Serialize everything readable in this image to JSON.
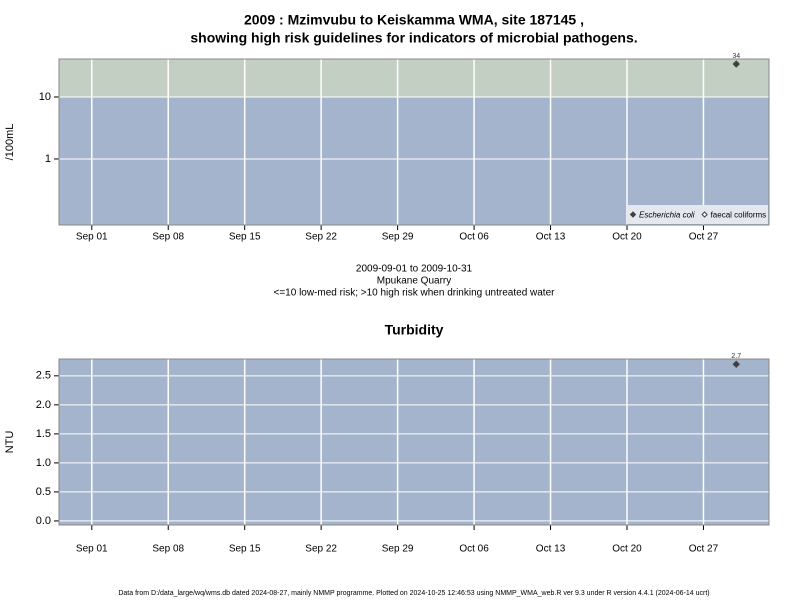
{
  "chart_data": [
    {
      "type": "scatter",
      "title": [
        "2009 : Mzimvubu to Keiskamma WMA, site 187145 ,",
        "showing high risk guidelines for indicators of microbial pathogens."
      ],
      "notes": [
        "2009-09-01 to 2009-10-31",
        "Mpukane Quarry",
        "<=10 low-med risk; >10 high risk when drinking untreated water"
      ],
      "ylabel": "/100mL",
      "x": [
        "2009-10-30"
      ],
      "xlim": [
        "2009-08-29",
        "2009-11-02"
      ],
      "xticks": [
        {
          "value": "2009-09-01",
          "label": "Sep 01"
        },
        {
          "value": "2009-09-08",
          "label": "Sep 08"
        },
        {
          "value": "2009-09-15",
          "label": "Sep 15"
        },
        {
          "value": "2009-09-22",
          "label": "Sep 22"
        },
        {
          "value": "2009-09-29",
          "label": "Sep 29"
        },
        {
          "value": "2009-10-06",
          "label": "Oct 06"
        },
        {
          "value": "2009-10-13",
          "label": "Oct 13"
        },
        {
          "value": "2009-10-20",
          "label": "Oct 20"
        },
        {
          "value": "2009-10-27",
          "label": "Oct 27"
        }
      ],
      "yscale": "log",
      "ylim": [
        0.086,
        41
      ],
      "yticks": [
        1,
        10
      ],
      "threshold": 10,
      "band_colors": {
        "below": "#a3b4cc",
        "above": "#c4cfc4"
      },
      "grid": true,
      "legend": "bottom right",
      "series": [
        {
          "name": "Escherichia coli",
          "marker": "filled-diamond",
          "font_style": "italic",
          "color": "#404040",
          "values": [
            34
          ]
        },
        {
          "name": "faecal coliforms",
          "marker": "open-diamond",
          "font_style": "normal",
          "color": "#404040",
          "values": [
            null
          ]
        }
      ]
    },
    {
      "type": "scatter",
      "title": [
        "Turbidity"
      ],
      "ylabel": "NTU",
      "x": [
        "2009-10-30"
      ],
      "xlim": [
        "2009-08-29",
        "2009-11-02"
      ],
      "xticks": [
        {
          "value": "2009-09-01",
          "label": "Sep 01"
        },
        {
          "value": "2009-09-08",
          "label": "Sep 08"
        },
        {
          "value": "2009-09-15",
          "label": "Sep 15"
        },
        {
          "value": "2009-09-22",
          "label": "Sep 22"
        },
        {
          "value": "2009-09-29",
          "label": "Sep 29"
        },
        {
          "value": "2009-10-06",
          "label": "Oct 06"
        },
        {
          "value": "2009-10-13",
          "label": "Oct 13"
        },
        {
          "value": "2009-10-20",
          "label": "Oct 20"
        },
        {
          "value": "2009-10-27",
          "label": "Oct 27"
        }
      ],
      "yscale": "linear",
      "ylim": [
        -0.07,
        2.79
      ],
      "yticks": [
        {
          "value": 0,
          "label": "0.0"
        },
        0.5,
        {
          "value": 1,
          "label": "1.0"
        },
        1.5,
        {
          "value": 2,
          "label": "2.0"
        },
        2.5
      ],
      "background": "#a3b4cc",
      "grid": true,
      "series": [
        {
          "marker": "filled-diamond",
          "color": "#404040",
          "values": [
            2.7
          ]
        }
      ]
    }
  ],
  "footer": "Data from D:/data_large/wq/wms.db dated 2024-08-27, mainly NMMP programme. Plotted on 2024-10-25 12:46:53 using NMMP_WMA_web.R ver 9.3 under R version 4.4.1 (2024-06-14 ucrt)"
}
